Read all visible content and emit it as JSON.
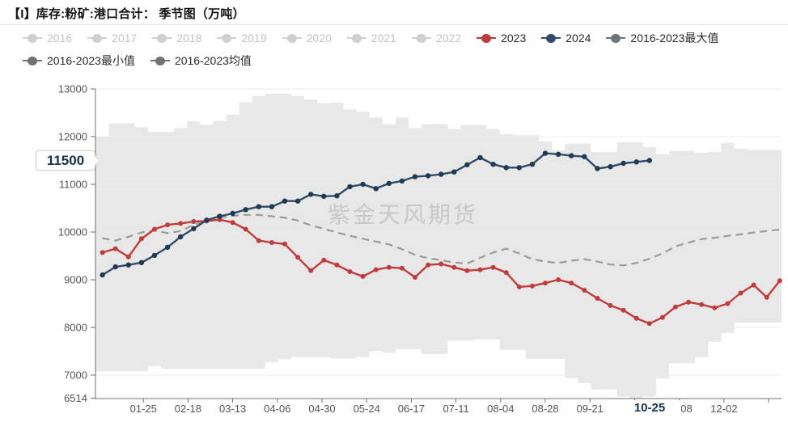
{
  "title": "【I】库存:粉矿:港口合计： 季节图（万吨）",
  "watermark": "紫金天风期货",
  "colors": {
    "red_2023": "#c23b3b",
    "navy_2024": "#2e4c68",
    "navy_marker": "#1e3a54",
    "inactive_gray": "#cfcfcf",
    "inactive_text": "#c3c3c3",
    "stat_gray": "#6e7378",
    "band_fill": "#e8e8e8",
    "mean_dash": "#9b9b9b",
    "grid": "#ededed",
    "axis": "#707070",
    "tick_text": "#555555",
    "accent_navy_text": "#16324f",
    "watermark_gray": "#c9c9c9"
  },
  "legend": {
    "row1": [
      {
        "label": "2016",
        "line": "#cfcfcf",
        "text": "#c3c3c3",
        "active": false
      },
      {
        "label": "2017",
        "line": "#cfcfcf",
        "text": "#c3c3c3",
        "active": false
      },
      {
        "label": "2018",
        "line": "#cfcfcf",
        "text": "#c3c3c3",
        "active": false
      },
      {
        "label": "2019",
        "line": "#cfcfcf",
        "text": "#c3c3c3",
        "active": false
      },
      {
        "label": "2020",
        "line": "#cfcfcf",
        "text": "#c3c3c3",
        "active": false
      },
      {
        "label": "2021",
        "line": "#cfcfcf",
        "text": "#c3c3c3",
        "active": false
      },
      {
        "label": "2022",
        "line": "#cfcfcf",
        "text": "#c3c3c3",
        "active": false
      },
      {
        "label": "2023",
        "line": "#c23b3b",
        "text": "#2b2b2b",
        "active": true
      },
      {
        "label": "2024",
        "line": "#2e4c68",
        "text": "#2b2b2b",
        "active": true
      },
      {
        "label": "2016-2023最大值",
        "line": "#6e7378",
        "text": "#2b2b2b",
        "active": true
      }
    ],
    "row2": [
      {
        "label": "2016-2023最小值",
        "line": "#6e7378",
        "text": "#2b2b2b",
        "active": true
      },
      {
        "label": "2016-2023均值",
        "line": "#6e7378",
        "text": "#2b2b2b",
        "active": true
      }
    ]
  },
  "current_marker": {
    "value_label": "11500",
    "date_label": "10-25"
  },
  "chart_data": {
    "type": "line",
    "title": "【I】库存:粉矿:港口合计： 季节图（万吨）",
    "ylabel": "万吨",
    "ylim": [
      6514,
      13000
    ],
    "y_ticks": [
      13000,
      12000,
      11000,
      10000,
      9000,
      8000,
      7000,
      6514
    ],
    "grid": true,
    "legend_position": "top",
    "x_axis": {
      "unit": "day-of-year",
      "start_day": 2,
      "step_days": 7,
      "points": 53
    },
    "x_ticks": [
      {
        "label": "01-25",
        "day": 24
      },
      {
        "label": "02-18",
        "day": 48
      },
      {
        "label": "03-13",
        "day": 72
      },
      {
        "label": "04-06",
        "day": 96
      },
      {
        "label": "04-30",
        "day": 120
      },
      {
        "label": "05-24",
        "day": 144
      },
      {
        "label": "06-17",
        "day": 168
      },
      {
        "label": "07-11",
        "day": 192
      },
      {
        "label": "08-04",
        "day": 216
      },
      {
        "label": "08-28",
        "day": 240
      },
      {
        "label": "09-21",
        "day": 264
      },
      {
        "label": "",
        "day": 288
      },
      {
        "label": "11-08",
        "day": 312
      },
      {
        "label": "12-02",
        "day": 336
      },
      {
        "label": "",
        "day": 360
      }
    ],
    "current": {
      "day": 296,
      "date_label": "10-25",
      "value": 11500
    },
    "series": [
      {
        "name": "2023",
        "role": "line",
        "color": "#c23b3b",
        "marker": "circle",
        "values": [
          9570,
          9650,
          9480,
          9860,
          10060,
          10150,
          10180,
          10220,
          10230,
          10260,
          10200,
          10060,
          9820,
          9780,
          9750,
          9470,
          9190,
          9410,
          9310,
          9170,
          9070,
          9210,
          9260,
          9240,
          9050,
          9310,
          9330,
          9260,
          9190,
          9210,
          9260,
          9150,
          8850,
          8870,
          8930,
          9000,
          8930,
          8780,
          8610,
          8460,
          8360,
          8190,
          8080,
          8210,
          8430,
          8530,
          8480,
          8410,
          8500,
          8720,
          8890,
          8630,
          8980
        ]
      },
      {
        "name": "2024",
        "role": "line",
        "color": "#2e4c68",
        "marker_color": "#1e3a54",
        "marker": "circle",
        "values": [
          9100,
          9270,
          9310,
          9360,
          9510,
          9680,
          9900,
          10070,
          10250,
          10330,
          10390,
          10470,
          10530,
          10530,
          10650,
          10650,
          10790,
          10750,
          10760,
          10950,
          11000,
          10910,
          11020,
          11070,
          11160,
          11180,
          11210,
          11260,
          11410,
          11560,
          11420,
          11350,
          11350,
          11420,
          11650,
          11630,
          11600,
          11580,
          11330,
          11370,
          11440,
          11470,
          11500
        ]
      },
      {
        "name": "2016-2023最大值",
        "role": "band-max",
        "interpolation": "step",
        "values": [
          12000,
          12280,
          12280,
          12200,
          12100,
          12100,
          12180,
          12320,
          12250,
          12330,
          12460,
          12720,
          12850,
          12900,
          12900,
          12850,
          12780,
          12700,
          12710,
          12570,
          12520,
          12400,
          12260,
          12400,
          12180,
          12260,
          12260,
          12160,
          12240,
          12240,
          12160,
          12050,
          12030,
          12030,
          11900,
          11710,
          11850,
          11850,
          11680,
          11680,
          11880,
          11880,
          11780,
          11630,
          11700,
          11700,
          11660,
          11680,
          11870,
          11750,
          11720,
          11720,
          11720
        ]
      },
      {
        "name": "2016-2023最小值",
        "role": "band-min",
        "interpolation": "step",
        "values": [
          7080,
          7080,
          7080,
          7080,
          7190,
          7130,
          7130,
          7130,
          7130,
          7130,
          7130,
          7130,
          7130,
          7270,
          7330,
          7380,
          7380,
          7380,
          7350,
          7350,
          7380,
          7500,
          7470,
          7540,
          7540,
          7440,
          7440,
          7720,
          7720,
          7750,
          7750,
          7530,
          7530,
          7340,
          7340,
          7340,
          6940,
          6830,
          6700,
          6700,
          6550,
          6514,
          6550,
          6930,
          7250,
          7250,
          7380,
          7700,
          7880,
          8100,
          8100,
          8100,
          8100
        ]
      },
      {
        "name": "2016-2023均值",
        "role": "mean",
        "style": "dashed",
        "color": "#9b9b9b",
        "values": [
          9870,
          9820,
          9900,
          9990,
          10030,
          9980,
          10020,
          10150,
          10240,
          10300,
          10340,
          10360,
          10360,
          10330,
          10300,
          10240,
          10140,
          10070,
          9990,
          9920,
          9860,
          9800,
          9740,
          9640,
          9520,
          9450,
          9410,
          9360,
          9340,
          9460,
          9570,
          9650,
          9550,
          9430,
          9380,
          9350,
          9400,
          9430,
          9380,
          9320,
          9300,
          9350,
          9440,
          9550,
          9700,
          9780,
          9850,
          9880,
          9920,
          9950,
          9990,
          10020,
          10050
        ]
      }
    ],
    "band_fill": "#e8e8e8"
  }
}
